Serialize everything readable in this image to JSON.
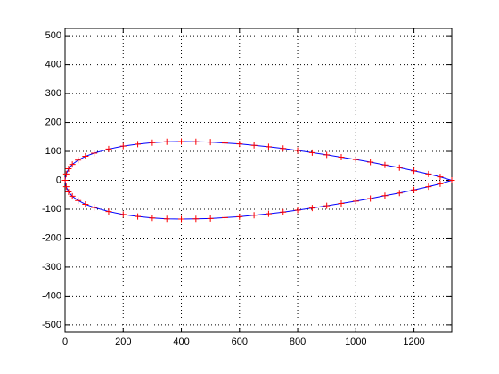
{
  "chart_data": {
    "type": "line",
    "x": [
      1330,
      1290,
      1250,
      1200,
      1150,
      1100,
      1050,
      1000,
      950,
      900,
      850,
      800,
      750,
      700,
      650,
      600,
      550,
      500,
      450,
      400,
      350,
      300,
      250,
      200,
      150,
      100,
      70,
      45,
      25,
      12,
      4,
      0,
      4,
      12,
      25,
      45,
      70,
      100,
      150,
      200,
      250,
      300,
      350,
      400,
      450,
      500,
      550,
      600,
      650,
      700,
      750,
      800,
      850,
      900,
      950,
      1000,
      1050,
      1100,
      1150,
      1200,
      1250,
      1290,
      1330
    ],
    "series": [
      {
        "color": "#0000ff",
        "marker_color": "#ff0000",
        "marker": "+",
        "values": [
          0,
          12,
          22,
          33,
          44,
          53,
          63,
          72,
          80,
          88,
          96,
          103,
          110,
          116,
          121,
          126,
          129,
          132,
          133,
          134,
          133,
          130,
          125,
          118,
          108,
          94,
          83,
          70,
          55,
          40,
          22,
          0,
          -22,
          -40,
          -55,
          -70,
          -83,
          -94,
          -108,
          -118,
          -125,
          -130,
          -133,
          -134,
          -133,
          -132,
          -129,
          -126,
          -121,
          -116,
          -110,
          -103,
          -96,
          -88,
          -80,
          -72,
          -63,
          -53,
          -44,
          -33,
          -22,
          -12,
          0
        ]
      }
    ],
    "xlim": [
      0,
      1330
    ],
    "ylim": [
      -525,
      525
    ],
    "xticks": [
      0,
      200,
      400,
      600,
      800,
      1000,
      1200
    ],
    "yticks": [
      -500,
      -400,
      -300,
      -200,
      -100,
      0,
      100,
      200,
      300,
      400,
      500
    ],
    "grid": true
  }
}
